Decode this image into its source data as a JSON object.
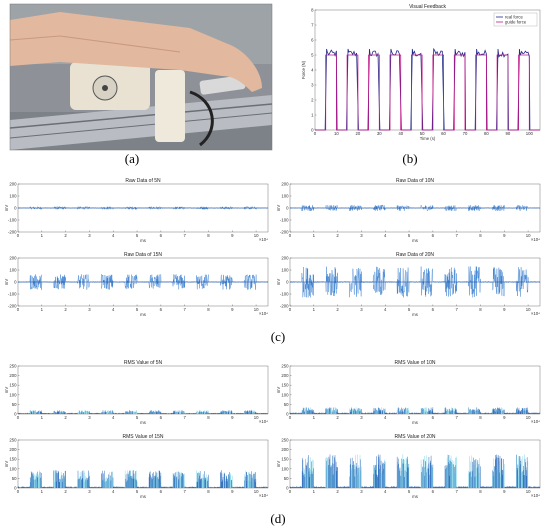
{
  "labels": {
    "a": "(a)",
    "b": "(b)",
    "c": "(c)",
    "d": "(d)"
  },
  "photo": {
    "name": "experiment-photo"
  },
  "chart_data": [
    {
      "id": "b",
      "type": "line",
      "title": "Visual Feedback",
      "xlabel": "Time (s)",
      "ylabel": "Force (N)",
      "xlim": [
        0,
        105
      ],
      "ylim": [
        0,
        8
      ],
      "xticks": [
        0,
        10,
        20,
        30,
        40,
        50,
        60,
        70,
        80,
        90,
        100
      ],
      "yticks": [
        0,
        1,
        2,
        3,
        4,
        5,
        6,
        7,
        8
      ],
      "legend": "top-right",
      "pulse_windows": [
        [
          5,
          10
        ],
        [
          15,
          20
        ],
        [
          25,
          30
        ],
        [
          35,
          40
        ],
        [
          45,
          50
        ],
        [
          55,
          60
        ],
        [
          65,
          70
        ],
        [
          75,
          80
        ],
        [
          85,
          90
        ],
        [
          95,
          100
        ]
      ],
      "series": [
        {
          "name": "real force",
          "color": "#1f2a8a",
          "pulse_level": 5.1
        },
        {
          "name": "guide force",
          "color": "#c2188a",
          "pulse_level": 5.0
        }
      ]
    },
    {
      "id": "c1",
      "type": "line",
      "title": "Raw Data of 5N",
      "xlabel": "ms",
      "ylabel": "mV",
      "xlim": [
        0,
        10.5
      ],
      "ylim": [
        -200,
        200
      ],
      "xticks": [
        0,
        1,
        2,
        3,
        4,
        5,
        6,
        7,
        8,
        9,
        10
      ],
      "yticks": [
        -200,
        -100,
        0,
        100,
        200
      ],
      "xscale_label": "×10⁴",
      "color": "#1f6fc8",
      "burst_amplitude": 12,
      "baseline": 3
    },
    {
      "id": "c2",
      "type": "line",
      "title": "Raw Data of 10N",
      "xlabel": "ms",
      "ylabel": "mV",
      "xlim": [
        0,
        10.5
      ],
      "ylim": [
        -200,
        200
      ],
      "xticks": [
        0,
        1,
        2,
        3,
        4,
        5,
        6,
        7,
        8,
        9,
        10
      ],
      "yticks": [
        -200,
        -100,
        0,
        100,
        200
      ],
      "xscale_label": "×10⁴",
      "color": "#1f6fc8",
      "burst_amplitude": 25,
      "baseline": 3
    },
    {
      "id": "c3",
      "type": "line",
      "title": "Raw Data of 15N",
      "xlabel": "ms",
      "ylabel": "mV",
      "xlim": [
        0,
        10.5
      ],
      "ylim": [
        -200,
        200
      ],
      "xticks": [
        0,
        1,
        2,
        3,
        4,
        5,
        6,
        7,
        8,
        9,
        10
      ],
      "yticks": [
        -200,
        -100,
        0,
        100,
        200
      ],
      "xscale_label": "×10⁴",
      "color": "#1f6fc8",
      "burst_amplitude": 65,
      "baseline": 4
    },
    {
      "id": "c4",
      "type": "line",
      "title": "Raw Data of 20N",
      "xlabel": "ms",
      "ylabel": "mV",
      "xlim": [
        0,
        10.5
      ],
      "ylim": [
        -200,
        200
      ],
      "xticks": [
        0,
        1,
        2,
        3,
        4,
        5,
        6,
        7,
        8,
        9,
        10
      ],
      "yticks": [
        -200,
        -100,
        0,
        100,
        200
      ],
      "xscale_label": "×10⁴",
      "color": "#1f6fc8",
      "burst_amplitude": 130,
      "baseline": 5
    },
    {
      "id": "d1",
      "type": "area",
      "title": "RMS Value of 5N",
      "xlabel": "ms",
      "ylabel": "mV",
      "xlim": [
        0,
        10.5
      ],
      "ylim": [
        0,
        250
      ],
      "xticks": [
        0,
        1,
        2,
        3,
        4,
        5,
        6,
        7,
        8,
        9,
        10
      ],
      "yticks": [
        0,
        50,
        100,
        150,
        200,
        250
      ],
      "xscale_label": "×10⁴",
      "color": "#1a5fb4",
      "highlight": "#7fd6e8",
      "burst_level": 18,
      "baseline": 4
    },
    {
      "id": "d2",
      "type": "area",
      "title": "RMS Value of 10N",
      "xlabel": "ms",
      "ylabel": "mV",
      "xlim": [
        0,
        10.5
      ],
      "ylim": [
        0,
        250
      ],
      "xticks": [
        0,
        1,
        2,
        3,
        4,
        5,
        6,
        7,
        8,
        9,
        10
      ],
      "yticks": [
        0,
        50,
        100,
        150,
        200,
        250
      ],
      "xscale_label": "×10⁴",
      "color": "#1a5fb4",
      "highlight": "#7fd6e8",
      "burst_level": 32,
      "baseline": 5
    },
    {
      "id": "d3",
      "type": "area",
      "title": "RMS Value of 15N",
      "xlabel": "ms",
      "ylabel": "mV",
      "xlim": [
        0,
        10.5
      ],
      "ylim": [
        0,
        250
      ],
      "xticks": [
        0,
        1,
        2,
        3,
        4,
        5,
        6,
        7,
        8,
        9,
        10
      ],
      "yticks": [
        0,
        50,
        100,
        150,
        200,
        250
      ],
      "xscale_label": "×10⁴",
      "color": "#1a5fb4",
      "highlight": "#7fd6e8",
      "burst_level": 85,
      "baseline": 5
    },
    {
      "id": "d4",
      "type": "area",
      "title": "RMS Value of 20N",
      "xlabel": "ms",
      "ylabel": "mV",
      "xlim": [
        0,
        10.5
      ],
      "ylim": [
        0,
        250
      ],
      "xticks": [
        0,
        1,
        2,
        3,
        4,
        5,
        6,
        7,
        8,
        9,
        10
      ],
      "yticks": [
        0,
        50,
        100,
        150,
        200,
        250
      ],
      "xscale_label": "×10⁴",
      "color": "#1a5fb4",
      "highlight": "#7fd6e8",
      "burst_level": 160,
      "baseline": 6
    }
  ]
}
